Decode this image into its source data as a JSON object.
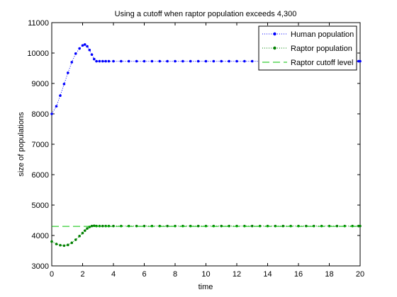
{
  "chart_data": {
    "type": "line",
    "title": "Using a cutoff when raptor population exceeds 4,300",
    "xlabel": "time",
    "ylabel": "size of populations",
    "xlim": [
      0,
      20
    ],
    "ylim": [
      3000,
      11000
    ],
    "xticks": [
      0,
      2,
      4,
      6,
      8,
      10,
      12,
      14,
      16,
      18,
      20
    ],
    "yticks": [
      3000,
      4000,
      5000,
      6000,
      7000,
      8000,
      9000,
      10000,
      11000
    ],
    "grid": false,
    "legend_position": "top-right",
    "series": [
      {
        "name": "Human population",
        "color": "#0000ff",
        "line_style": "dotted",
        "marker": "dot",
        "x": [
          0,
          0.3,
          0.55,
          0.8,
          1.05,
          1.3,
          1.55,
          1.8,
          2.0,
          2.15,
          2.3,
          2.45,
          2.6,
          2.75,
          2.9,
          3.1,
          3.3,
          3.5,
          3.7,
          4,
          4.5,
          5,
          5.5,
          6,
          6.5,
          7,
          7.5,
          8,
          8.5,
          9,
          9.5,
          10,
          10.5,
          11,
          11.5,
          12,
          12.5,
          13,
          13.5,
          14,
          14.5,
          15,
          15.5,
          16,
          16.5,
          17,
          17.5,
          18,
          18.5,
          19,
          19.5,
          19.9,
          20
        ],
        "y": [
          8000,
          8250,
          8600,
          8980,
          9350,
          9700,
          9980,
          10150,
          10250,
          10280,
          10220,
          10100,
          9950,
          9800,
          9730,
          9730,
          9730,
          9730,
          9730,
          9730,
          9730,
          9730,
          9730,
          9730,
          9730,
          9730,
          9730,
          9730,
          9730,
          9730,
          9730,
          9730,
          9730,
          9730,
          9730,
          9730,
          9730,
          9730,
          9730,
          9730,
          9730,
          9730,
          9730,
          9730,
          9730,
          9730,
          9730,
          9730,
          9730,
          9730,
          9730,
          9730,
          9730
        ]
      },
      {
        "name": "Raptor population",
        "color": "#008000",
        "line_style": "dotted",
        "marker": "dot",
        "x": [
          0,
          0.3,
          0.55,
          0.8,
          1.05,
          1.3,
          1.55,
          1.8,
          2.0,
          2.15,
          2.3,
          2.45,
          2.6,
          2.75,
          2.9,
          3.1,
          3.3,
          3.5,
          3.7,
          4,
          4.5,
          5,
          5.5,
          6,
          6.5,
          7,
          7.5,
          8,
          8.5,
          9,
          9.5,
          10,
          10.5,
          11,
          11.5,
          12,
          12.5,
          13,
          13.5,
          14,
          14.5,
          15,
          15.5,
          16,
          16.5,
          17,
          17.5,
          18,
          18.5,
          19,
          19.5,
          19.9,
          20
        ],
        "y": [
          3800,
          3720,
          3680,
          3665,
          3690,
          3760,
          3860,
          3980,
          4080,
          4160,
          4230,
          4280,
          4310,
          4320,
          4310,
          4310,
          4310,
          4310,
          4310,
          4310,
          4310,
          4310,
          4310,
          4310,
          4310,
          4310,
          4310,
          4310,
          4310,
          4310,
          4310,
          4310,
          4310,
          4310,
          4310,
          4310,
          4310,
          4310,
          4310,
          4310,
          4310,
          4310,
          4310,
          4310,
          4310,
          4310,
          4310,
          4310,
          4310,
          4310,
          4310,
          4310,
          4310
        ]
      },
      {
        "name": "Raptor cutoff level",
        "color": "#00c000",
        "line_style": "dashed",
        "marker": "none",
        "x": [
          0,
          20
        ],
        "y": [
          4300,
          4300
        ]
      }
    ]
  }
}
